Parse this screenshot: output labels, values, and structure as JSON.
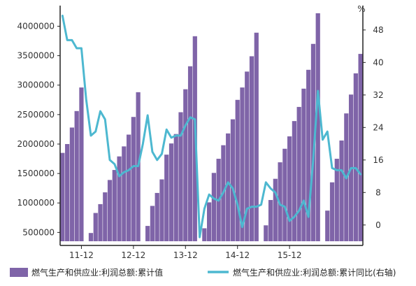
{
  "chart_data": {
    "type": "bar",
    "right_axis_unit": "%",
    "left_axis": {
      "ylim": [
        350000,
        4350000
      ],
      "ticks": [
        "4000000",
        "3500000",
        "3000000",
        "2500000",
        "2000000",
        "1500000",
        "1000000",
        "500000"
      ],
      "tick_values": [
        4000000,
        3500000,
        3000000,
        2500000,
        2000000,
        1500000,
        1000000,
        500000
      ]
    },
    "right_axis": {
      "ylim": [
        -4,
        54
      ],
      "ticks": [
        "48",
        "40",
        "32",
        "24",
        "16",
        "8",
        "0"
      ],
      "tick_values": [
        48,
        40,
        32,
        24,
        16,
        8,
        0
      ]
    },
    "x_ticks": [
      {
        "label": "11-12",
        "index": 4
      },
      {
        "label": "12-12",
        "index": 15
      },
      {
        "label": "13-12",
        "index": 26
      },
      {
        "label": "14-12",
        "index": 37
      },
      {
        "label": "15-12",
        "index": 48
      }
    ],
    "grid": false,
    "legend_position": "bottom",
    "series": [
      {
        "name": "燃气生产和供应业:利润总额:累计值",
        "type": "bar",
        "axis": "left",
        "color": "#7f64a8",
        "values": [
          1850000,
          2000000,
          2280000,
          2560000,
          2960000,
          null,
          490000,
          830000,
          980000,
          1180000,
          1390000,
          1560000,
          1790000,
          1960000,
          2160000,
          2460000,
          2880000,
          null,
          610000,
          950000,
          1170000,
          1400000,
          1820000,
          2010000,
          2170000,
          2540000,
          2930000,
          3320000,
          3830000,
          null,
          570000,
          1010000,
          1510000,
          1750000,
          1980000,
          2180000,
          2420000,
          2750000,
          2960000,
          3230000,
          3490000,
          3890000,
          null,
          620000,
          1050000,
          1410000,
          1690000,
          1920000,
          2130000,
          2390000,
          2630000,
          2940000,
          3260000,
          3700000,
          4220000,
          null,
          870000,
          1350000,
          1750000,
          2060000,
          2520000,
          2840000,
          3200000,
          3530000
        ]
      },
      {
        "name": "燃气生产和供应业:利润总额:累计同比(右轴)",
        "type": "line",
        "axis": "right",
        "color": "#4db8d0",
        "values": [
          51.5,
          45.5,
          45.5,
          43.5,
          43.5,
          31.0,
          22.0,
          23.0,
          28.0,
          26.0,
          16.0,
          15.0,
          12.0,
          13.0,
          13.5,
          14.5,
          14.5,
          20.0,
          27.0,
          18.0,
          16.0,
          17.5,
          23.5,
          21.5,
          22.0,
          22.0,
          24.5,
          26.5,
          26.0,
          -3.0,
          4.0,
          7.5,
          6.5,
          6.0,
          8.0,
          10.5,
          9.0,
          5.0,
          -0.5,
          4.0,
          4.5,
          4.5,
          5.0,
          10.5,
          9.0,
          8.0,
          5.0,
          4.5,
          1.0,
          2.0,
          3.5,
          6.0,
          2.0,
          16.0,
          33.0,
          21.0,
          23.0,
          14.0,
          13.5,
          13.5,
          11.5,
          14.0,
          14.0,
          12.5
        ]
      }
    ]
  }
}
